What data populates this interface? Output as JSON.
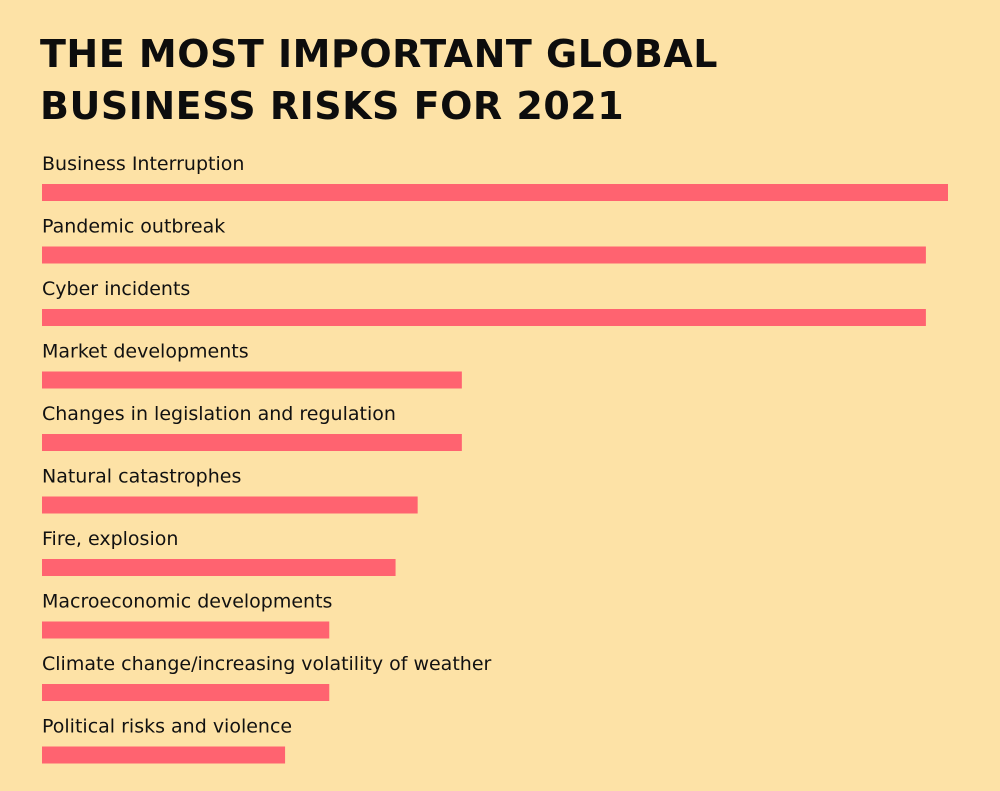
{
  "colors": {
    "background": "#FDE2A6",
    "bar": "#FF6370",
    "text": "#111111"
  },
  "chart_data": {
    "type": "bar",
    "orientation": "horizontal",
    "title_lines": [
      "THE MOST IMPORTANT GLOBAL",
      "BUSINESS RISKS FOR 2021"
    ],
    "categories": [
      "Business Interruption",
      "Pandemic outbreak",
      "Cyber incidents",
      "Market developments",
      "Changes in legislation and regulation",
      "Natural catastrophes",
      "Fire, explosion",
      "Macroeconomic developments",
      "Climate change/increasing volatility of weather",
      "Political risks and violence"
    ],
    "values": [
      41,
      40,
      40,
      19,
      19,
      17,
      16,
      13,
      13,
      11
    ],
    "xlim": [
      0,
      41
    ],
    "grid": false,
    "legend": "none",
    "axes_visible": false
  }
}
